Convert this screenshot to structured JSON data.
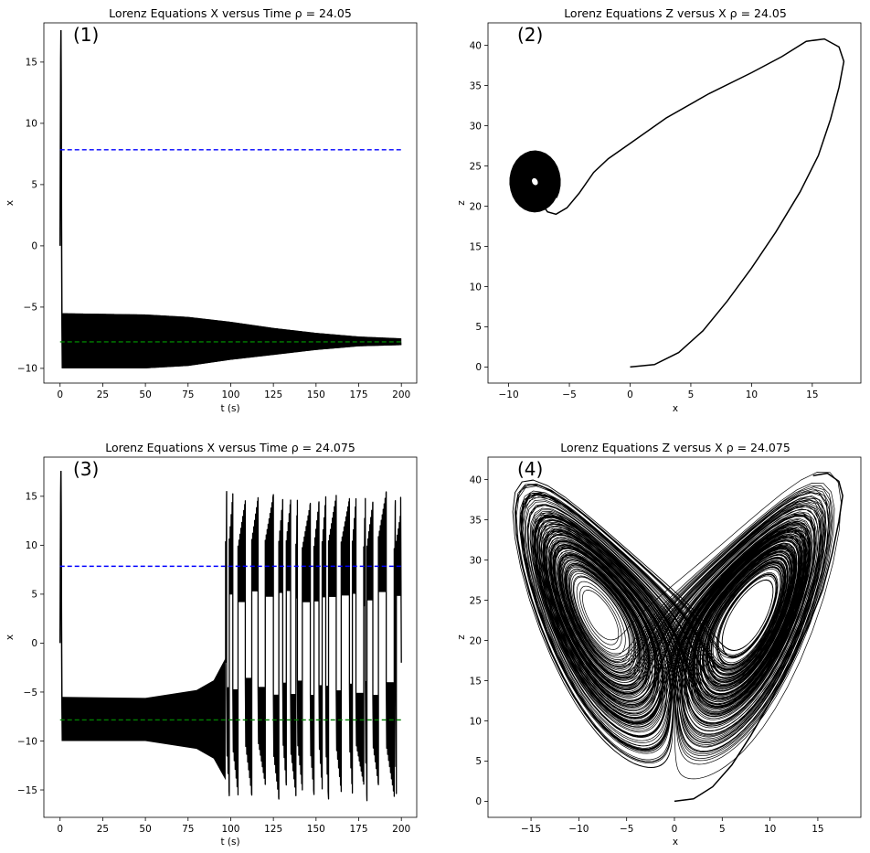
{
  "colors": {
    "trajectory": "#000000",
    "upper_fixed_point": "#0000ff",
    "lower_fixed_point": "#008000",
    "axes": "#000000",
    "background": "#ffffff"
  },
  "chart_data": [
    {
      "type": "line",
      "panel_label": "(1)",
      "title": "Lorenz Equations X versus Time ρ = 24.05",
      "xlabel": "t (s)",
      "ylabel": "x",
      "xlim": [
        -9.5,
        209
      ],
      "ylim": [
        -11.2,
        18.2
      ],
      "xticks": [
        0,
        25,
        50,
        75,
        100,
        125,
        150,
        175,
        200
      ],
      "yticks": [
        -10,
        -5,
        0,
        5,
        10,
        15
      ],
      "grid": false,
      "reference_lines": [
        {
          "y": 7.84,
          "color": "#0000ff",
          "style": "dashed"
        },
        {
          "y": -7.84,
          "color": "#008000",
          "style": "dashed"
        }
      ],
      "series": [
        {
          "values": [
            [
              0.0,
              0.0
            ],
            [
              0.15,
              6.5
            ],
            [
              0.35,
              15.2
            ],
            [
              0.5,
              17.6
            ],
            [
              0.65,
              13.0
            ],
            [
              0.85,
              3.0
            ],
            [
              1.1,
              -6.5
            ],
            [
              1.3,
              -10.0
            ]
          ]
        }
      ],
      "envelope": {
        "description_value_points": [
          {
            "t": 1.5,
            "upper": -5.5,
            "lower": -10.0
          },
          {
            "t": 50,
            "upper": -5.6,
            "lower": -10.0
          },
          {
            "t": 75,
            "upper": -5.8,
            "lower": -9.8
          },
          {
            "t": 100,
            "upper": -6.2,
            "lower": -9.3
          },
          {
            "t": 125,
            "upper": -6.7,
            "lower": -8.9
          },
          {
            "t": 150,
            "upper": -7.1,
            "lower": -8.5
          },
          {
            "t": 175,
            "upper": -7.4,
            "lower": -8.2
          },
          {
            "t": 200,
            "upper": -7.55,
            "lower": -8.1
          }
        ]
      }
    },
    {
      "type": "line",
      "panel_label": "(2)",
      "title": "Lorenz Equations Z versus X ρ = 24.05",
      "xlabel": "x",
      "ylabel": "z",
      "xlim": [
        -11.7,
        19.0
      ],
      "ylim": [
        -2.0,
        42.8
      ],
      "xticks": [
        -10,
        -5,
        0,
        5,
        10,
        15
      ],
      "yticks": [
        0,
        5,
        10,
        15,
        20,
        25,
        30,
        35,
        40
      ],
      "grid": false,
      "series": [
        {
          "values": [
            [
              0,
              0
            ],
            [
              2,
              0.3
            ],
            [
              4,
              1.8
            ],
            [
              6,
              4.5
            ],
            [
              8,
              8.2
            ],
            [
              10,
              12.3
            ],
            [
              12,
              16.8
            ],
            [
              14,
              21.8
            ],
            [
              15.5,
              26.3
            ],
            [
              16.5,
              30.8
            ],
            [
              17.2,
              34.8
            ],
            [
              17.6,
              38.0
            ],
            [
              17.2,
              39.8
            ],
            [
              16.0,
              40.8
            ],
            [
              14.5,
              40.5
            ],
            [
              12.5,
              38.6
            ],
            [
              10.0,
              36.6
            ],
            [
              6.5,
              34.0
            ],
            [
              3.0,
              31.0
            ],
            [
              0.0,
              27.8
            ],
            [
              -1.8,
              25.9
            ],
            [
              -3.0,
              24.2
            ],
            [
              -4.2,
              21.6
            ],
            [
              -5.2,
              19.8
            ],
            [
              -6.1,
              19.0
            ],
            [
              -6.8,
              19.3
            ],
            [
              -7.3,
              20.4
            ]
          ]
        }
      ],
      "filled_spiral": {
        "center": [
          -7.84,
          23.05
        ],
        "outer_x_range": [
          -10.0,
          -5.6
        ],
        "outer_z_range": [
          19.0,
          27.1
        ]
      }
    },
    {
      "type": "line",
      "panel_label": "(3)",
      "title": "Lorenz Equations X versus Time ρ = 24.075",
      "xlabel": "t (s)",
      "ylabel": "x",
      "xlim": [
        -9.5,
        209
      ],
      "ylim": [
        -17.8,
        19.0
      ],
      "xticks": [
        0,
        25,
        50,
        75,
        100,
        125,
        150,
        175,
        200
      ],
      "yticks": [
        -15,
        -10,
        -5,
        0,
        5,
        10,
        15
      ],
      "grid": false,
      "reference_lines": [
        {
          "y": 7.85,
          "color": "#0000ff",
          "style": "dashed"
        },
        {
          "y": -7.85,
          "color": "#008000",
          "style": "dashed"
        }
      ],
      "transient_envelope": [
        {
          "t": 1.5,
          "upper": -5.5,
          "lower": -10.0
        },
        {
          "t": 50,
          "upper": -5.6,
          "lower": -10.0
        },
        {
          "t": 80,
          "upper": -4.8,
          "lower": -10.8
        },
        {
          "t": 90,
          "upper": -3.8,
          "lower": -11.8
        },
        {
          "t": 97,
          "upper": -1.5,
          "lower": -14.0
        }
      ],
      "chaotic_regime": {
        "t_range": [
          97,
          200
        ],
        "x_range": [
          -16.3,
          15.6
        ],
        "end_value": -2.0
      }
    },
    {
      "type": "line",
      "panel_label": "(4)",
      "title": "Lorenz Equations Z versus X ρ = 24.075",
      "xlabel": "x",
      "ylabel": "z",
      "xlim": [
        -19.5,
        19.5
      ],
      "ylim": [
        -2.0,
        42.8
      ],
      "xticks": [
        -15,
        -10,
        -5,
        0,
        5,
        10,
        15
      ],
      "yticks": [
        0,
        5,
        10,
        15,
        20,
        25,
        30,
        35,
        40
      ],
      "grid": false,
      "series": [
        {
          "values": [
            [
              0,
              0
            ],
            [
              2,
              0.3
            ],
            [
              4,
              1.8
            ],
            [
              6,
              4.5
            ],
            [
              8,
              8.2
            ],
            [
              10,
              12.3
            ],
            [
              12,
              16.8
            ],
            [
              14,
              21.8
            ],
            [
              15.5,
              26.3
            ],
            [
              16.5,
              30.8
            ],
            [
              17.2,
              34.8
            ],
            [
              17.6,
              38.0
            ],
            [
              17.2,
              39.8
            ],
            [
              16.0,
              40.8
            ],
            [
              14.5,
              40.5
            ]
          ]
        }
      ],
      "attractor_lobes": [
        {
          "center": [
            -7.85,
            23.0
          ],
          "x_range": [
            -16.4,
            -0.5
          ],
          "z_range": [
            5.5,
            38.2
          ]
        },
        {
          "center": [
            7.85,
            23.0
          ],
          "x_range": [
            0.5,
            16.4
          ],
          "z_range": [
            5.5,
            38.2
          ]
        }
      ]
    }
  ]
}
